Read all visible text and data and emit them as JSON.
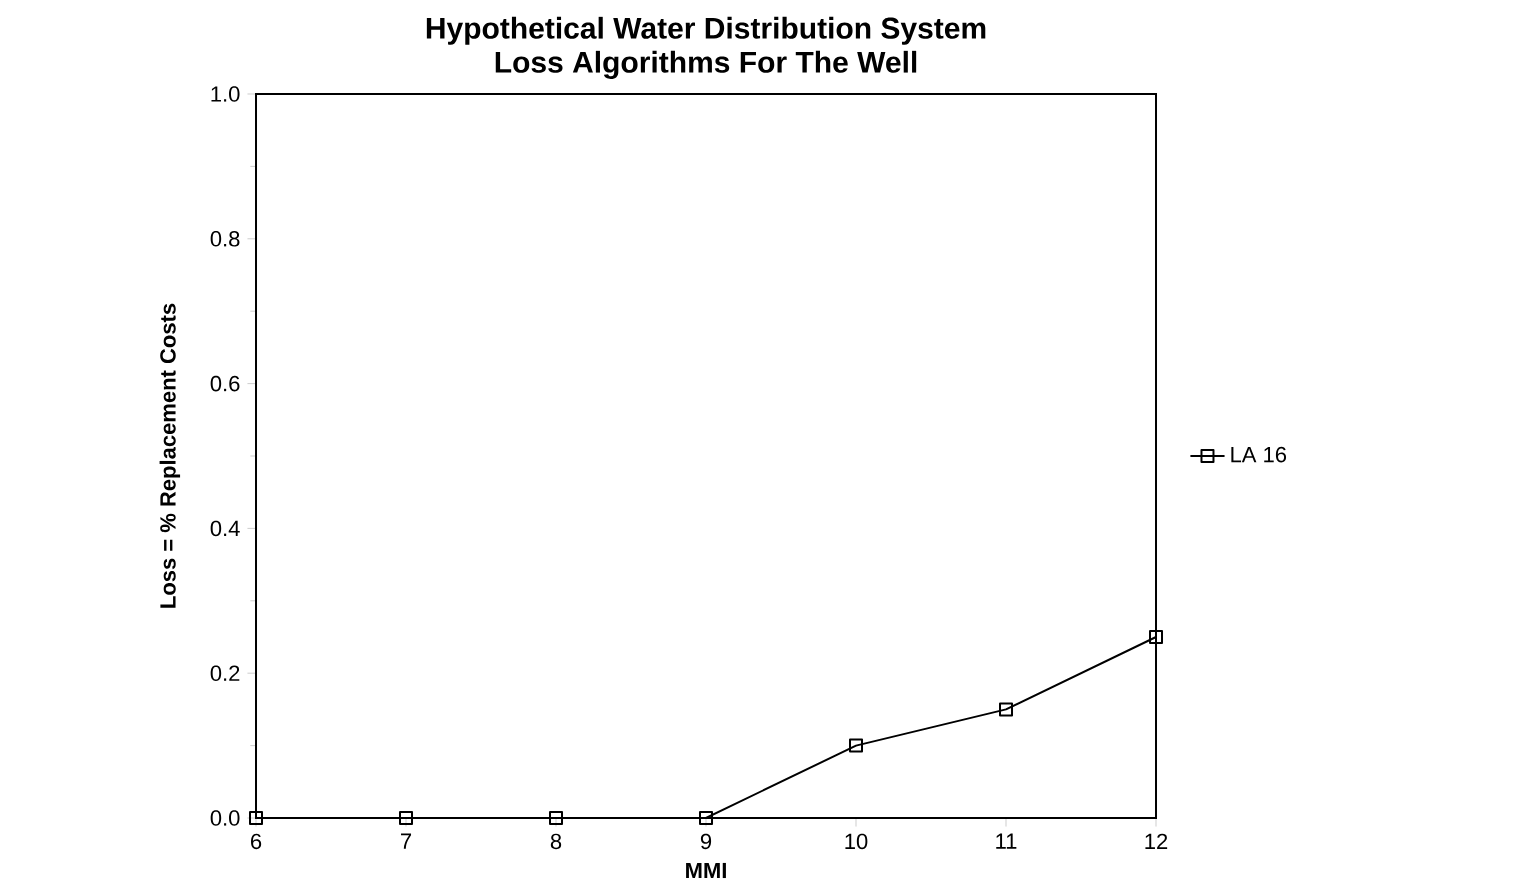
{
  "chart_data": {
    "type": "line",
    "title": "Hypothetical Water Distribution System\nLoss Algorithms For The Well",
    "xlabel": "MMI",
    "ylabel": "Loss = % Replacement Costs",
    "x": [
      6,
      7,
      8,
      9,
      10,
      11,
      12
    ],
    "series": [
      {
        "name": "LA 16",
        "color": "#000000",
        "values": [
          0,
          0,
          0,
          0,
          0.1,
          0.15,
          0.25
        ]
      }
    ],
    "xlim": [
      6,
      12
    ],
    "xticks": [
      6,
      7,
      8,
      9,
      10,
      11,
      12
    ],
    "ylim": [
      0,
      1
    ],
    "yticks": [
      {
        "value": 0,
        "label": "0.0"
      },
      {
        "value": 0.2,
        "label": "0.2"
      },
      {
        "value": 0.4,
        "label": "0.4"
      },
      {
        "value": 0.6,
        "label": "0.6"
      },
      {
        "value": 0.8,
        "label": "0.8"
      },
      {
        "value": 1,
        "label": "1.0"
      }
    ],
    "grid": false,
    "legend": "right",
    "marker": "square",
    "line_style": "solid"
  }
}
